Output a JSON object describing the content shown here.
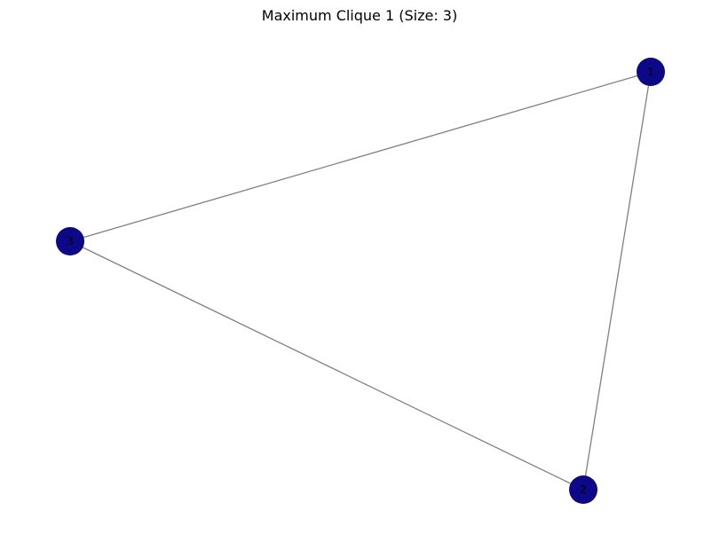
{
  "title": "Maximum Clique 1 (Size: 3)",
  "colors": {
    "node_fill": "#0d0887",
    "edge": "#808080",
    "label": "#000000",
    "background": "#ffffff"
  },
  "nodes": [
    {
      "id": "1",
      "label": "1"
    },
    {
      "id": "2",
      "label": "2"
    },
    {
      "id": "3",
      "label": "3"
    }
  ],
  "edges": [
    {
      "source": "1",
      "target": "2"
    },
    {
      "source": "1",
      "target": "3"
    },
    {
      "source": "2",
      "target": "3"
    }
  ]
}
